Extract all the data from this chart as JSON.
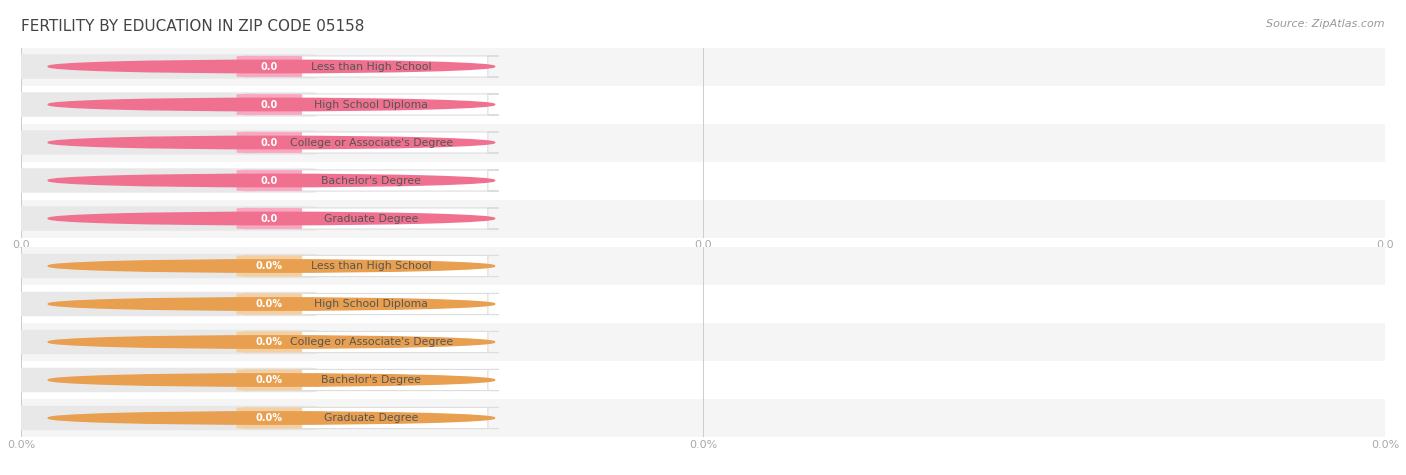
{
  "title": "Fertility by Education in Zip Code 05158",
  "source": "Source: ZipAtlas.com",
  "categories": [
    "Less than High School",
    "High School Diploma",
    "College or Associate's Degree",
    "Bachelor's Degree",
    "Graduate Degree"
  ],
  "top_values": [
    0.0,
    0.0,
    0.0,
    0.0,
    0.0
  ],
  "bottom_values": [
    0.0,
    0.0,
    0.0,
    0.0,
    0.0
  ],
  "top_bar_color": "#F9A8C0",
  "top_dot_color": "#F07090",
  "bottom_bar_color": "#F5CFA0",
  "bottom_dot_color": "#E8A050",
  "bar_bg_color": "#E8E8E8",
  "label_bg_color": "#FFFFFF",
  "label_border_color": "#DDDDDD",
  "bg_color": "#FFFFFF",
  "row_bg_odd": "#F5F5F5",
  "row_bg_even": "#FFFFFF",
  "title_color": "#444444",
  "source_color": "#999999",
  "tick_color": "#AAAAAA",
  "grid_color": "#CCCCCC",
  "label_text_color": "#555555",
  "value_text_color": "#FFFFFF",
  "top_suffix": "",
  "bottom_suffix": "%",
  "top_tick_labels": [
    "0.0",
    "0.0",
    "0.0"
  ],
  "bottom_tick_labels": [
    "0.0%",
    "0.0%",
    "0.0%"
  ]
}
